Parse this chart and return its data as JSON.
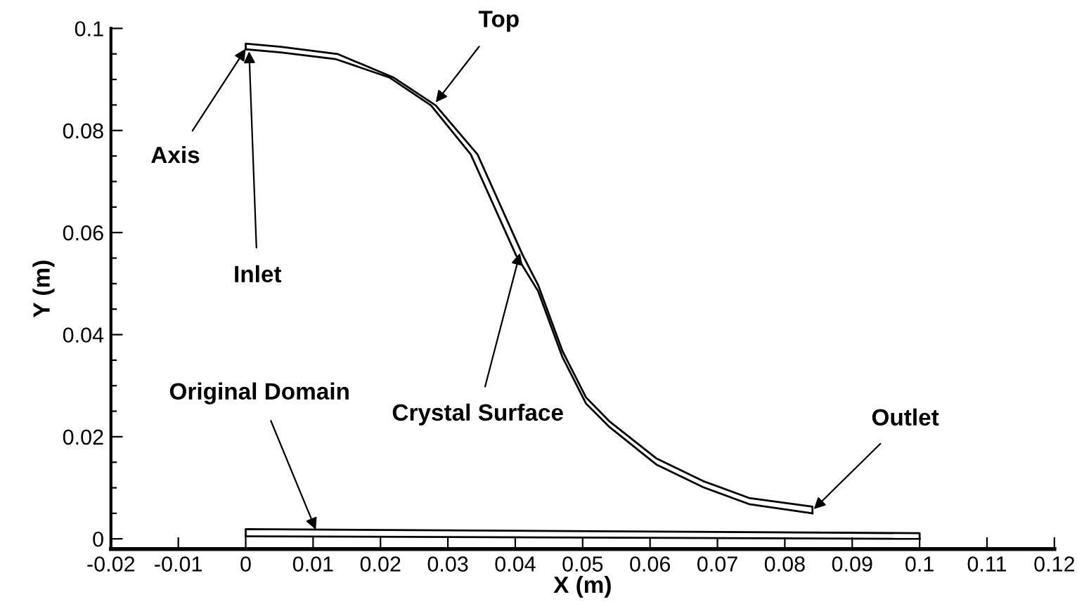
{
  "chart_data": {
    "type": "line",
    "xlabel": "X (m)",
    "ylabel": "Y (m)",
    "xlim": [
      -0.02,
      0.12
    ],
    "ylim": [
      -0.002,
      0.1
    ],
    "xticks": [
      -0.02,
      -0.01,
      0,
      0.01,
      0.02,
      0.03,
      0.04,
      0.05,
      0.06,
      0.07,
      0.08,
      0.09,
      0.1,
      0.11,
      0.12
    ],
    "yticks": [
      0,
      {
        "value": 0.005,
        "label": null
      },
      {
        "value": 0.01,
        "label": null
      },
      {
        "value": 0.015,
        "label": null
      },
      0.02,
      {
        "value": 0.025,
        "label": null
      },
      {
        "value": 0.03,
        "label": null
      },
      {
        "value": 0.035,
        "label": null
      },
      0.04,
      {
        "value": 0.045,
        "label": null
      },
      {
        "value": 0.05,
        "label": null
      },
      {
        "value": 0.055,
        "label": null
      },
      0.06,
      {
        "value": 0.065,
        "label": null
      },
      {
        "value": 0.07,
        "label": null
      },
      {
        "value": 0.075,
        "label": null
      },
      0.08,
      {
        "value": 0.085,
        "label": null
      },
      {
        "value": 0.09,
        "label": null
      },
      {
        "value": 0.095,
        "label": null
      },
      0.1
    ],
    "grid": false,
    "legend": false,
    "marker": "none",
    "line_style": "solid",
    "series": [
      {
        "color": "#000000",
        "x": [
          0,
          0,
          0.0052,
          0.0136,
          0.0219,
          0.0282,
          0.0344,
          0.0411,
          0.0434,
          0.047,
          0.0505,
          0.0539,
          0.061,
          0.0679,
          0.0747,
          0.0841,
          0.0841
        ],
        "values": [
          0.0959,
          0.097,
          0.0964,
          0.095,
          0.0904,
          0.0849,
          0.0753,
          0.0556,
          0.0497,
          0.0368,
          0.0277,
          0.0231,
          0.0157,
          0.0113,
          0.008,
          0.0063,
          0.005
        ]
      },
      {
        "color": "#000000",
        "x": [
          0,
          0.0052,
          0.0133,
          0.0213,
          0.0275,
          0.0334,
          0.0401,
          0.0434,
          0.047,
          0.0505,
          0.0539,
          0.061,
          0.0679,
          0.0747,
          0.0841
        ],
        "values": [
          0.0959,
          0.0953,
          0.094,
          0.0904,
          0.0849,
          0.0753,
          0.0556,
          0.0485,
          0.0356,
          0.0265,
          0.022,
          0.0145,
          0.0101,
          0.0068,
          0.005
        ]
      },
      {
        "color": "#000000",
        "x": [
          0,
          0,
          0.1,
          0.1
        ],
        "values": [
          0.0005,
          0.0019,
          0.0011,
          0
        ]
      },
      {
        "color": "#000000",
        "x": [
          0,
          0.1
        ],
        "values": [
          0.0005,
          0
        ]
      }
    ],
    "annotations": [
      {
        "text": "Axis",
        "x": 0,
        "y": 0.096
      },
      {
        "text": "Inlet",
        "x": 0.0005,
        "y": 0.0955
      },
      {
        "text": "Top",
        "x": 0.0282,
        "y": 0.0855
      },
      {
        "text": "Crystal Surface",
        "x": 0.0407,
        "y": 0.056
      },
      {
        "text": "Original Domain",
        "x": 0.0104,
        "y": 0.0018
      },
      {
        "text": "Outlet",
        "x": 0.0843,
        "y": 0.0058
      }
    ]
  }
}
